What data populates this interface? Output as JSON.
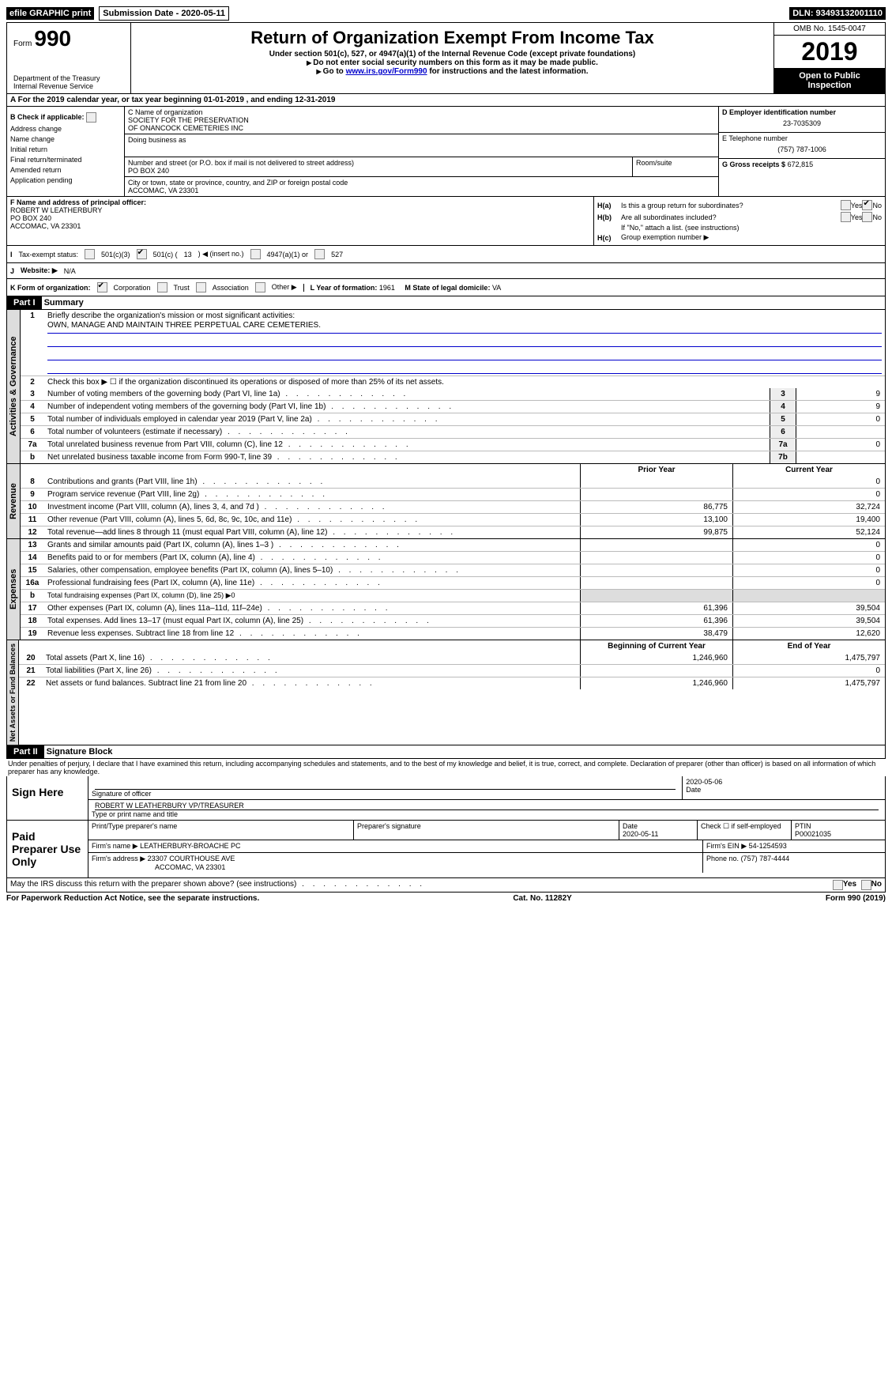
{
  "topbar": {
    "efile": "efile GRAPHIC print",
    "sub_label": "Submission Date - 2020-05-11",
    "dln": "DLN: 93493132001110"
  },
  "header": {
    "form_prefix": "Form",
    "form_num": "990",
    "title": "Return of Organization Exempt From Income Tax",
    "subtitle": "Under section 501(c), 527, or 4947(a)(1) of the Internal Revenue Code (except private foundations)",
    "note1": "Do not enter social security numbers on this form as it may be made public.",
    "note2_prefix": "Go to ",
    "note2_link": "www.irs.gov/Form990",
    "note2_suffix": " for instructions and the latest information.",
    "dept": "Department of the Treasury\nInternal Revenue Service",
    "omb": "OMB No. 1545-0047",
    "year": "2019",
    "open": "Open to Public Inspection"
  },
  "row_a": "A   For the 2019 calendar year, or tax year beginning 01-01-2019     , and ending 12-31-2019",
  "col_b": {
    "heading": "B Check if applicable:",
    "items": [
      "Address change",
      "Name change",
      "Initial return",
      "Final return/terminated",
      "Amended return",
      "Application pending"
    ]
  },
  "col_c": {
    "name_label": "C Name of organization",
    "name1": "SOCIETY FOR THE PRESERVATION",
    "name2": "OF ONANCOCK CEMETERIES INC",
    "dba": "Doing business as",
    "addr_label": "Number and street (or P.O. box if mail is not delivered to street address)",
    "room_label": "Room/suite",
    "addr": "PO BOX 240",
    "city_label": "City or town, state or province, country, and ZIP or foreign postal code",
    "city": "ACCOMAC, VA  23301"
  },
  "col_d": {
    "ein_label": "D Employer identification number",
    "ein": "23-7035309",
    "tel_label": "E Telephone number",
    "tel": "(757) 787-1006",
    "gross_label": "G Gross receipts $",
    "gross": "672,815"
  },
  "col_f": {
    "label": "F Name and address of principal officer:",
    "name": "ROBERT W LEATHERBURY",
    "addr1": "PO BOX 240",
    "addr2": "ACCOMAC, VA  23301"
  },
  "col_h": {
    "ha_label": "H(a)",
    "ha_text": "Is this a group return for subordinates?",
    "hb_label": "H(b)",
    "hb_text": "Are all subordinates included?",
    "hb_note": "If \"No,\" attach a list. (see instructions)",
    "hc_label": "H(c)",
    "hc_text": "Group exemption number ▶",
    "yes": "Yes",
    "no": "No"
  },
  "row_i": {
    "label": "I",
    "text": "Tax-exempt status:",
    "opt1": "501(c)(3)",
    "opt2a": "501(c) (",
    "opt2b": "13",
    "opt2c": ") ◀ (insert no.)",
    "opt3": "4947(a)(1) or",
    "opt4": "527"
  },
  "row_j": {
    "label": "J",
    "text": "Website: ▶",
    "val": "N/A"
  },
  "row_k": {
    "label": "K Form of organization:",
    "opts": [
      "Corporation",
      "Trust",
      "Association",
      "Other ▶"
    ],
    "l_label": "L Year of formation:",
    "l_val": "1961",
    "m_label": "M State of legal domicile:",
    "m_val": "VA"
  },
  "part1": {
    "header": "Part I",
    "title": "Summary",
    "l1_text": "Briefly describe the organization's mission or most significant activities:",
    "l1_val": "OWN, MANAGE AND MAINTAIN THREE PERPETUAL CARE CEMETERIES.",
    "l2_text": "Check this box ▶ ☐ if the organization discontinued its operations or disposed of more than 25% of its net assets.",
    "lines_gov": [
      {
        "n": "3",
        "d": "Number of voting members of the governing body (Part VI, line 1a)",
        "box": "3",
        "v": "9"
      },
      {
        "n": "4",
        "d": "Number of independent voting members of the governing body (Part VI, line 1b)",
        "box": "4",
        "v": "9"
      },
      {
        "n": "5",
        "d": "Total number of individuals employed in calendar year 2019 (Part V, line 2a)",
        "box": "5",
        "v": "0"
      },
      {
        "n": "6",
        "d": "Total number of volunteers (estimate if necessary)",
        "box": "6",
        "v": ""
      },
      {
        "n": "7a",
        "d": "Total unrelated business revenue from Part VIII, column (C), line 12",
        "box": "7a",
        "v": "0"
      },
      {
        "n": "b",
        "d": "Net unrelated business taxable income from Form 990-T, line 39",
        "box": "7b",
        "v": ""
      }
    ],
    "prior_label": "Prior Year",
    "current_label": "Current Year",
    "lines_rev": [
      {
        "n": "8",
        "d": "Contributions and grants (Part VIII, line 1h)",
        "p": "",
        "c": "0"
      },
      {
        "n": "9",
        "d": "Program service revenue (Part VIII, line 2g)",
        "p": "",
        "c": "0"
      },
      {
        "n": "10",
        "d": "Investment income (Part VIII, column (A), lines 3, 4, and 7d )",
        "p": "86,775",
        "c": "32,724"
      },
      {
        "n": "11",
        "d": "Other revenue (Part VIII, column (A), lines 5, 6d, 8c, 9c, 10c, and 11e)",
        "p": "13,100",
        "c": "19,400"
      },
      {
        "n": "12",
        "d": "Total revenue—add lines 8 through 11 (must equal Part VIII, column (A), line 12)",
        "p": "99,875",
        "c": "52,124"
      }
    ],
    "lines_exp": [
      {
        "n": "13",
        "d": "Grants and similar amounts paid (Part IX, column (A), lines 1–3 )",
        "p": "",
        "c": "0"
      },
      {
        "n": "14",
        "d": "Benefits paid to or for members (Part IX, column (A), line 4)",
        "p": "",
        "c": "0"
      },
      {
        "n": "15",
        "d": "Salaries, other compensation, employee benefits (Part IX, column (A), lines 5–10)",
        "p": "",
        "c": "0"
      },
      {
        "n": "16a",
        "d": "Professional fundraising fees (Part IX, column (A), line 11e)",
        "p": "",
        "c": "0"
      },
      {
        "n": "b",
        "d": "Total fundraising expenses (Part IX, column (D), line 25) ▶0",
        "p": null,
        "c": null
      },
      {
        "n": "17",
        "d": "Other expenses (Part IX, column (A), lines 11a–11d, 11f–24e)",
        "p": "61,396",
        "c": "39,504"
      },
      {
        "n": "18",
        "d": "Total expenses. Add lines 13–17 (must equal Part IX, column (A), line 25)",
        "p": "61,396",
        "c": "39,504"
      },
      {
        "n": "19",
        "d": "Revenue less expenses. Subtract line 18 from line 12",
        "p": "38,479",
        "c": "12,620"
      }
    ],
    "begin_label": "Beginning of Current Year",
    "end_label": "End of Year",
    "lines_net": [
      {
        "n": "20",
        "d": "Total assets (Part X, line 16)",
        "p": "1,246,960",
        "c": "1,475,797"
      },
      {
        "n": "21",
        "d": "Total liabilities (Part X, line 26)",
        "p": "",
        "c": "0"
      },
      {
        "n": "22",
        "d": "Net assets or fund balances. Subtract line 21 from line 20",
        "p": "1,246,960",
        "c": "1,475,797"
      }
    ]
  },
  "sides": {
    "gov": "Activities & Governance",
    "rev": "Revenue",
    "exp": "Expenses",
    "net": "Net Assets or Fund Balances"
  },
  "part2": {
    "header": "Part II",
    "title": "Signature Block",
    "perjury": "Under penalties of perjury, I declare that I have examined this return, including accompanying schedules and statements, and to the best of my knowledge and belief, it is true, correct, and complete. Declaration of preparer (other than officer) is based on all information of which preparer has any knowledge."
  },
  "sign": {
    "sign_here": "Sign Here",
    "sig_label": "Signature of officer",
    "date_label": "Date",
    "date_val": "2020-05-06",
    "name": "ROBERT W LEATHERBURY  VP/TREASURER",
    "name_label": "Type or print name and title",
    "paid": "Paid Preparer Use Only",
    "prep_name_label": "Print/Type preparer's name",
    "prep_sig_label": "Preparer's signature",
    "prep_date_label": "Date",
    "prep_date": "2020-05-11",
    "check_label": "Check ☐ if self-employed",
    "ptin_label": "PTIN",
    "ptin": "P00021035",
    "firm_name_label": "Firm's name    ▶",
    "firm_name": "LEATHERBURY-BROACHE PC",
    "firm_ein_label": "Firm's EIN ▶",
    "firm_ein": "54-1254593",
    "firm_addr_label": "Firm's address ▶",
    "firm_addr1": "23307 COURTHOUSE AVE",
    "firm_addr2": "ACCOMAC, VA  23301",
    "firm_phone_label": "Phone no.",
    "firm_phone": "(757) 787-4444",
    "discuss": "May the IRS discuss this return with the preparer shown above? (see instructions)"
  },
  "footer": {
    "left": "For Paperwork Reduction Act Notice, see the separate instructions.",
    "mid": "Cat. No. 11282Y",
    "right": "Form 990 (2019)"
  }
}
